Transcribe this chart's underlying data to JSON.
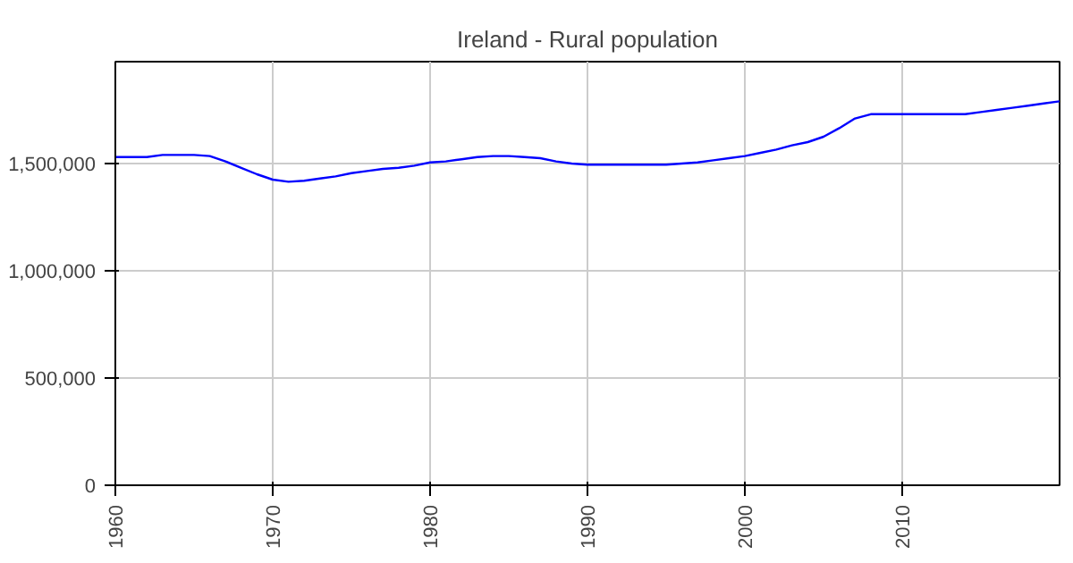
{
  "chart_data": {
    "type": "line",
    "title": "Ireland - Rural population",
    "x": [
      1960,
      1961,
      1962,
      1963,
      1964,
      1965,
      1966,
      1967,
      1968,
      1969,
      1970,
      1971,
      1972,
      1973,
      1974,
      1975,
      1976,
      1977,
      1978,
      1979,
      1980,
      1981,
      1982,
      1983,
      1984,
      1985,
      1986,
      1987,
      1988,
      1989,
      1990,
      1991,
      1992,
      1993,
      1994,
      1995,
      1996,
      1997,
      1998,
      1999,
      2000,
      2001,
      2002,
      2003,
      2004,
      2005,
      2006,
      2007,
      2008,
      2009,
      2010,
      2011,
      2012,
      2013,
      2014,
      2015,
      2016,
      2017,
      2018,
      2019,
      2020
    ],
    "series": [
      {
        "color": "#0000ff",
        "values": [
          1530000,
          1530000,
          1530000,
          1540000,
          1540000,
          1540000,
          1535000,
          1510000,
          1480000,
          1450000,
          1425000,
          1415000,
          1420000,
          1430000,
          1440000,
          1455000,
          1465000,
          1475000,
          1480000,
          1490000,
          1505000,
          1510000,
          1520000,
          1530000,
          1535000,
          1535000,
          1530000,
          1525000,
          1510000,
          1500000,
          1495000,
          1495000,
          1495000,
          1495000,
          1495000,
          1495000,
          1500000,
          1505000,
          1515000,
          1525000,
          1535000,
          1550000,
          1565000,
          1585000,
          1600000,
          1625000,
          1665000,
          1710000,
          1730000,
          1730000,
          1730000,
          1730000,
          1730000,
          1730000,
          1730000,
          1740000,
          1750000,
          1760000,
          1770000,
          1780000,
          1790000
        ]
      }
    ],
    "xlim": [
      1960,
      2020
    ],
    "xticks": [
      1960,
      1970,
      1980,
      1990,
      2000,
      2010
    ],
    "ylim": [
      0,
      1975000
    ],
    "yticks": [
      {
        "value": 0,
        "label": "0"
      },
      {
        "value": 500000,
        "label": "500,000"
      },
      {
        "value": 1000000,
        "label": "1,000,000"
      },
      {
        "value": 1500000,
        "label": "1,500,000"
      }
    ],
    "grid": true,
    "marker": "none",
    "line_style": "solid"
  }
}
